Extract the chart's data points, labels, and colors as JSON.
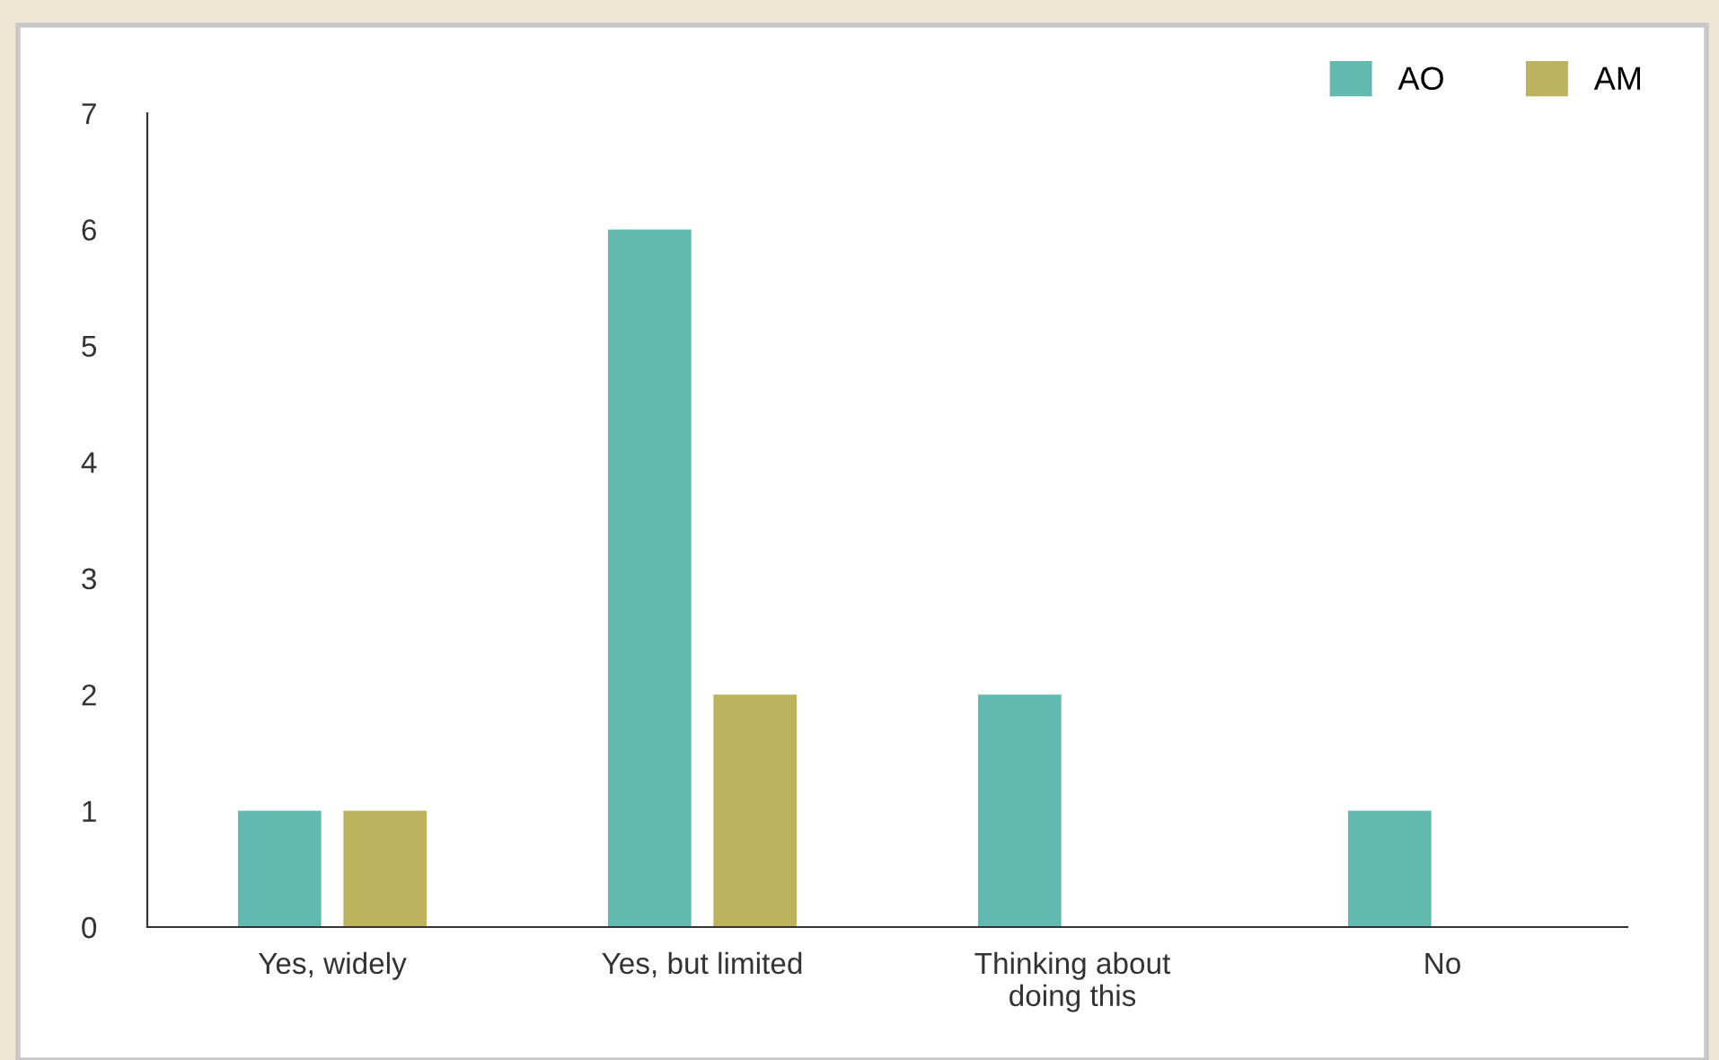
{
  "chart_data": {
    "type": "bar",
    "categories": [
      "Yes, widely",
      "Yes, but limited",
      "Thinking about\ndoing this",
      "No"
    ],
    "series": [
      {
        "name": "AO",
        "color": "#62b9b0",
        "values": [
          1,
          6,
          2,
          1
        ]
      },
      {
        "name": "AM",
        "color": "#bdb35e",
        "values": [
          1,
          2,
          null,
          null
        ]
      }
    ],
    "ylim": [
      0,
      7
    ],
    "yticks": [
      0,
      1,
      2,
      3,
      4,
      5,
      6,
      7
    ],
    "grid": false,
    "legend": "top right"
  }
}
